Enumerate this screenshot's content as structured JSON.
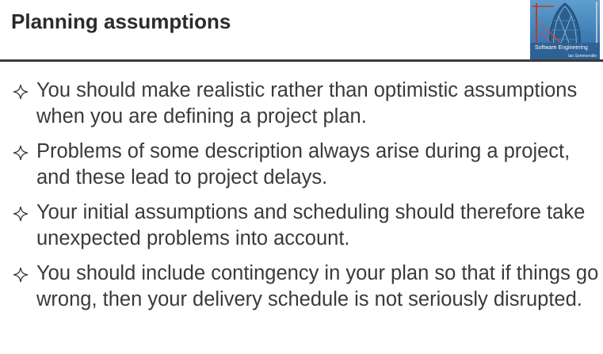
{
  "slide": {
    "title": "Planning assumptions",
    "bullets": [
      "You should make realistic rather than optimistic assumptions when you are defining a project plan.",
      "Problems of some description always arise during a project, and these lead to project delays.",
      "Your initial assumptions and scheduling should therefore take unexpected problems into account.",
      "You should include contingency in your plan so that if things go wrong, then your delivery schedule is not seriously disrupted."
    ],
    "bullet_icon": "four-point-star-icon"
  },
  "book_cover": {
    "title": "Software Engineering",
    "author": "Ian Sommerville"
  },
  "colors": {
    "text": "#3a3a3a",
    "rule": "#3a3a3a",
    "cover_blue": "#3f7fb6"
  }
}
